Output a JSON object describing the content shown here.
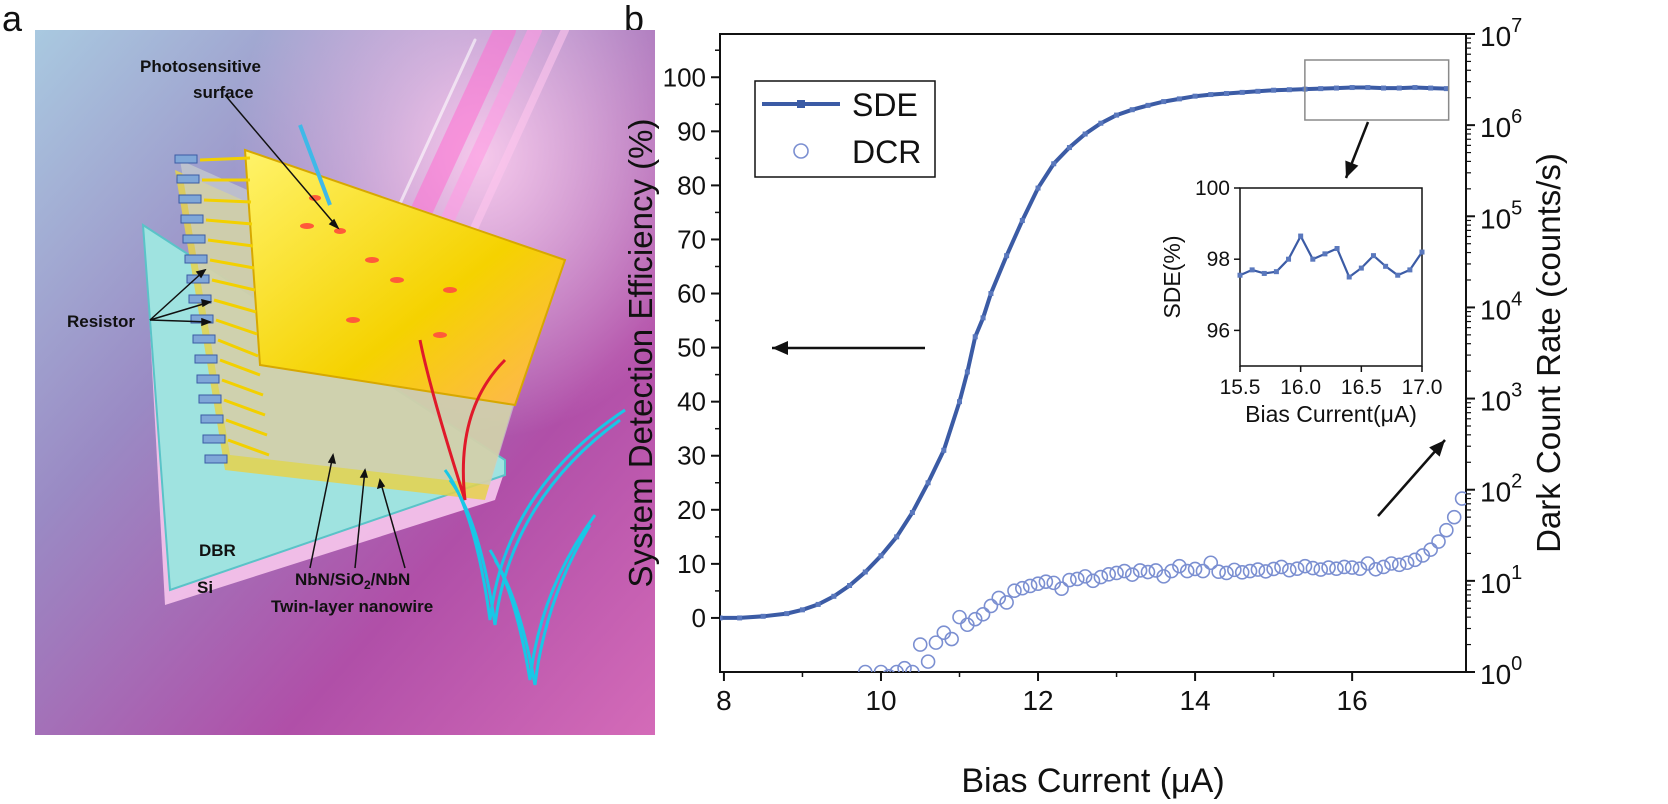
{
  "panel_a": {
    "label": "a",
    "labels": {
      "photosensitive_line1": "Photosensitive",
      "photosensitive_line2": "surface",
      "resistor": "Resistor",
      "dbr": "DBR",
      "si": "Si",
      "nanowire_pre": "NbN/SiO",
      "nanowire_sub": "2",
      "nanowire_post": "/NbN",
      "nanowire_line2": "Twin-layer nanowire"
    }
  },
  "panel_b": {
    "label": "b"
  },
  "chart_data": {
    "type": "line",
    "xlabel": "Bias Current (μA)",
    "ylabel_left": "System Detection Efficiency (%)",
    "ylabel_right": "Dark Count Rate (counts/s)",
    "xlim": [
      7.95,
      17.45
    ],
    "ylim_left": [
      -10,
      108
    ],
    "ylim_right": [
      1,
      10000000
    ],
    "right_axis_scale": "log",
    "xticks": [
      "8",
      "10",
      "12",
      "14",
      "16"
    ],
    "yticks_left": [
      "0",
      "10",
      "20",
      "30",
      "40",
      "50",
      "60",
      "70",
      "80",
      "90",
      "100"
    ],
    "yticks_right_base": [
      "10",
      "10",
      "10",
      "10",
      "10",
      "10",
      "10",
      "10"
    ],
    "yticks_right_exp": [
      "0",
      "1",
      "2",
      "3",
      "4",
      "5",
      "6",
      "7"
    ],
    "legend": {
      "placement": "top-left",
      "entries": [
        "SDE",
        "DCR"
      ]
    },
    "series": [
      {
        "name": "SDE",
        "axis": "left",
        "style": "line-with-square-markers",
        "color": "#3b5ba5",
        "x": [
          7.95,
          8.2,
          8.5,
          8.8,
          9.0,
          9.2,
          9.4,
          9.6,
          9.8,
          10.0,
          10.2,
          10.4,
          10.6,
          10.8,
          11.0,
          11.1,
          11.2,
          11.3,
          11.4,
          11.6,
          11.8,
          12.0,
          12.2,
          12.4,
          12.6,
          12.8,
          13.0,
          13.2,
          13.4,
          13.6,
          13.8,
          14.0,
          14.2,
          14.4,
          14.6,
          14.8,
          15.0,
          15.2,
          15.4,
          15.6,
          15.8,
          16.0,
          16.2,
          16.4,
          16.6,
          16.8,
          17.0,
          17.2
        ],
        "y": [
          0,
          0,
          0.3,
          0.8,
          1.5,
          2.5,
          4,
          6,
          8.5,
          11.5,
          15,
          19.5,
          25,
          31,
          40,
          45.5,
          52,
          55.5,
          60,
          67,
          73.5,
          79.5,
          84,
          87,
          89.5,
          91.5,
          93,
          94,
          94.8,
          95.5,
          96,
          96.5,
          96.8,
          97,
          97.2,
          97.4,
          97.6,
          97.7,
          97.8,
          97.9,
          98,
          98.1,
          98.1,
          98,
          98,
          98.1,
          98,
          97.9
        ]
      },
      {
        "name": "DCR",
        "axis": "right",
        "style": "open-circle-markers",
        "color": "#7b8fd1",
        "x": [
          9.8,
          10.0,
          10.1,
          10.2,
          10.3,
          10.4,
          10.5,
          10.6,
          10.7,
          10.8,
          10.9,
          11.0,
          11.1,
          11.2,
          11.3,
          11.4,
          11.5,
          11.6,
          11.7,
          11.8,
          11.9,
          12.0,
          12.1,
          12.2,
          12.3,
          12.4,
          12.5,
          12.6,
          12.7,
          12.8,
          12.9,
          13.0,
          13.1,
          13.2,
          13.3,
          13.4,
          13.5,
          13.6,
          13.7,
          13.8,
          13.9,
          14.0,
          14.1,
          14.2,
          14.3,
          14.4,
          14.5,
          14.6,
          14.7,
          14.8,
          14.9,
          15.0,
          15.1,
          15.2,
          15.3,
          15.4,
          15.5,
          15.6,
          15.7,
          15.8,
          15.9,
          16.0,
          16.1,
          16.2,
          16.3,
          16.4,
          16.5,
          16.6,
          16.7,
          16.8,
          16.9,
          17.0,
          17.1,
          17.2,
          17.3,
          17.4
        ],
        "y": [
          1.0,
          1.0,
          0.9,
          1.0,
          1.1,
          1.0,
          2.0,
          1.3,
          2.1,
          2.7,
          2.3,
          4.0,
          3.3,
          3.8,
          4.3,
          5.3,
          6.5,
          5.8,
          7.8,
          8.3,
          8.8,
          9.3,
          9.8,
          9.5,
          8.2,
          10.2,
          10.5,
          11.2,
          10.0,
          11.0,
          11.8,
          12.2,
          12.8,
          11.7,
          13.0,
          12.5,
          13.0,
          11.2,
          12.8,
          14.5,
          12.8,
          13.5,
          12.8,
          15.8,
          12.6,
          12.2,
          13.2,
          12.4,
          12.8,
          13.3,
          12.7,
          13.5,
          14.2,
          13.1,
          13.6,
          14.5,
          13.8,
          13.3,
          14.0,
          13.6,
          14.2,
          14.0,
          13.6,
          15.5,
          13.4,
          14.2,
          15.5,
          15.0,
          15.8,
          17.0,
          19.0,
          22.0,
          27.0,
          36.0,
          50.0,
          80.0
        ]
      }
    ],
    "annotations": [
      {
        "type": "arrow",
        "direction": "left",
        "meaning": "SDE reads left axis"
      },
      {
        "type": "arrow",
        "direction": "up-right",
        "meaning": "DCR reads right axis"
      },
      {
        "type": "arrow",
        "direction": "down",
        "meaning": "zoom into SDE plateau"
      }
    ],
    "inset": {
      "type": "line",
      "xlabel": "Bias Current(μA)",
      "ylabel": "SDE(%)",
      "xlim": [
        15.5,
        17.0
      ],
      "ylim": [
        95.0,
        100.0
      ],
      "xticks": [
        "15.5",
        "16.0",
        "16.5",
        "17.0"
      ],
      "yticks": [
        "96",
        "98",
        "100"
      ],
      "series": [
        {
          "name": "SDE",
          "x": [
            15.5,
            15.6,
            15.7,
            15.8,
            15.9,
            16.0,
            16.1,
            16.2,
            16.3,
            16.4,
            16.5,
            16.6,
            16.7,
            16.8,
            16.9,
            17.0
          ],
          "y": [
            97.55,
            97.7,
            97.6,
            97.65,
            98.0,
            98.65,
            98.0,
            98.15,
            98.3,
            97.5,
            97.75,
            98.1,
            97.8,
            97.55,
            97.7,
            98.2
          ]
        }
      ]
    }
  }
}
